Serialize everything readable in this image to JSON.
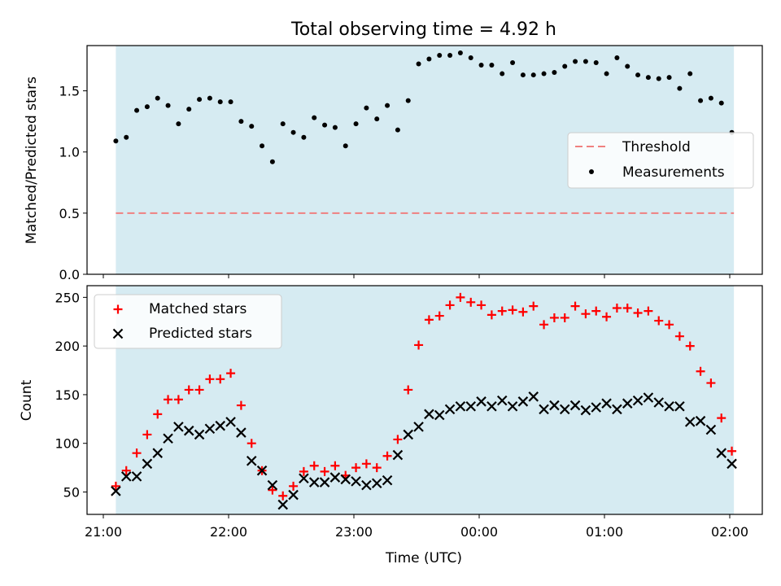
{
  "chart_data": [
    {
      "type": "scatter",
      "title": "Total observing time = 4.92 h",
      "xlabel": "",
      "ylabel": "Matched/Predicted stars",
      "xlim": [
        "21:00",
        "02:00"
      ],
      "ylim": [
        0,
        1.87
      ],
      "yticks": [
        "0.0",
        "0.5",
        "1.0",
        "1.5"
      ],
      "shaded_region": [
        "21:06",
        "02:02"
      ],
      "threshold": {
        "name": "Threshold",
        "y": 0.5,
        "color": "#f08080",
        "style": "dashed"
      },
      "series": [
        {
          "name": "Measurements",
          "color": "#000000",
          "x": [
            "21:06",
            "21:11",
            "21:16",
            "21:21",
            "21:26",
            "21:31",
            "21:36",
            "21:41",
            "21:46",
            "21:51",
            "21:56",
            "22:01",
            "22:06",
            "22:11",
            "22:16",
            "22:21",
            "22:26",
            "22:31",
            "22:36",
            "22:41",
            "22:46",
            "22:51",
            "22:56",
            "23:01",
            "23:06",
            "23:11",
            "23:16",
            "23:21",
            "23:26",
            "23:31",
            "23:36",
            "23:41",
            "23:46",
            "23:51",
            "23:56",
            "00:01",
            "00:06",
            "00:11",
            "00:16",
            "00:21",
            "00:26",
            "00:31",
            "00:36",
            "00:41",
            "00:46",
            "00:51",
            "00:56",
            "01:01",
            "01:06",
            "01:11",
            "01:16",
            "01:21",
            "01:26",
            "01:31",
            "01:36",
            "01:41",
            "01:46",
            "01:51",
            "01:56",
            "02:01"
          ],
          "y": [
            1.09,
            1.12,
            1.34,
            1.37,
            1.44,
            1.38,
            1.23,
            1.35,
            1.43,
            1.44,
            1.41,
            1.41,
            1.25,
            1.21,
            1.05,
            0.92,
            1.23,
            1.16,
            1.12,
            1.28,
            1.22,
            1.2,
            1.05,
            1.23,
            1.36,
            1.27,
            1.38,
            1.18,
            1.42,
            1.72,
            1.76,
            1.79,
            1.79,
            1.81,
            1.77,
            1.71,
            1.71,
            1.64,
            1.73,
            1.63,
            1.63,
            1.64,
            1.65,
            1.7,
            1.74,
            1.74,
            1.73,
            1.64,
            1.77,
            1.7,
            1.63,
            1.61,
            1.6,
            1.61,
            1.52,
            1.64,
            1.42,
            1.44,
            1.4,
            1.16
          ]
        }
      ]
    },
    {
      "type": "scatter",
      "title": "",
      "xlabel": "Time (UTC)",
      "ylabel": "Count",
      "xlim": [
        "21:00",
        "02:00"
      ],
      "ylim": [
        27,
        262
      ],
      "xticks": [
        "21:00",
        "22:00",
        "23:00",
        "00:00",
        "01:00",
        "02:00"
      ],
      "yticks": [
        "50",
        "100",
        "150",
        "200",
        "250"
      ],
      "shaded_region": [
        "21:06",
        "02:02"
      ],
      "series": [
        {
          "name": "Matched stars",
          "marker": "plus",
          "color": "#ff0000",
          "x": [
            "21:06",
            "21:11",
            "21:16",
            "21:21",
            "21:26",
            "21:31",
            "21:36",
            "21:41",
            "21:46",
            "21:51",
            "21:56",
            "22:01",
            "22:06",
            "22:11",
            "22:16",
            "22:21",
            "22:26",
            "22:31",
            "22:36",
            "22:41",
            "22:46",
            "22:51",
            "22:56",
            "23:01",
            "23:06",
            "23:11",
            "23:16",
            "23:21",
            "23:26",
            "23:31",
            "23:36",
            "23:41",
            "23:46",
            "23:51",
            "23:56",
            "00:01",
            "00:06",
            "00:11",
            "00:16",
            "00:21",
            "00:26",
            "00:31",
            "00:36",
            "00:41",
            "00:46",
            "00:51",
            "00:56",
            "01:01",
            "01:06",
            "01:11",
            "01:16",
            "01:21",
            "01:26",
            "01:31",
            "01:36",
            "01:41",
            "01:46",
            "01:51",
            "01:56",
            "02:01"
          ],
          "y": [
            56,
            72,
            90,
            109,
            130,
            145,
            145,
            155,
            155,
            166,
            166,
            172,
            139,
            100,
            72,
            52,
            46,
            56,
            71,
            77,
            71,
            77,
            67,
            75,
            79,
            75,
            87,
            104,
            155,
            201,
            227,
            231,
            242,
            250,
            245,
            242,
            232,
            236,
            237,
            235,
            241,
            222,
            229,
            229,
            241,
            233,
            236,
            230,
            239,
            239,
            234,
            236,
            226,
            222,
            210,
            200,
            174,
            162,
            126,
            92
          ]
        },
        {
          "name": "Predicted stars",
          "marker": "x",
          "color": "#000000",
          "x": [
            "21:06",
            "21:11",
            "21:16",
            "21:21",
            "21:26",
            "21:31",
            "21:36",
            "21:41",
            "21:46",
            "21:51",
            "21:56",
            "22:01",
            "22:06",
            "22:11",
            "22:16",
            "22:21",
            "22:26",
            "22:31",
            "22:36",
            "22:41",
            "22:46",
            "22:51",
            "22:56",
            "23:01",
            "23:06",
            "23:11",
            "23:16",
            "23:21",
            "23:26",
            "23:31",
            "23:36",
            "23:41",
            "23:46",
            "23:51",
            "23:56",
            "00:01",
            "00:06",
            "00:11",
            "00:16",
            "00:21",
            "00:26",
            "00:31",
            "00:36",
            "00:41",
            "00:46",
            "00:51",
            "00:56",
            "01:01",
            "01:06",
            "01:11",
            "01:16",
            "01:21",
            "01:26",
            "01:31",
            "01:36",
            "01:41",
            "01:46",
            "01:51",
            "01:56",
            "02:01"
          ],
          "y": [
            51,
            66,
            66,
            79,
            90,
            105,
            117,
            113,
            109,
            115,
            118,
            122,
            111,
            82,
            72,
            57,
            37,
            47,
            64,
            60,
            60,
            65,
            63,
            61,
            57,
            59,
            62,
            88,
            109,
            117,
            130,
            129,
            135,
            138,
            138,
            143,
            138,
            144,
            138,
            143,
            148,
            135,
            139,
            135,
            139,
            134,
            137,
            141,
            135,
            141,
            144,
            147,
            142,
            138,
            138,
            122,
            123,
            114,
            90,
            79
          ]
        }
      ]
    }
  ]
}
